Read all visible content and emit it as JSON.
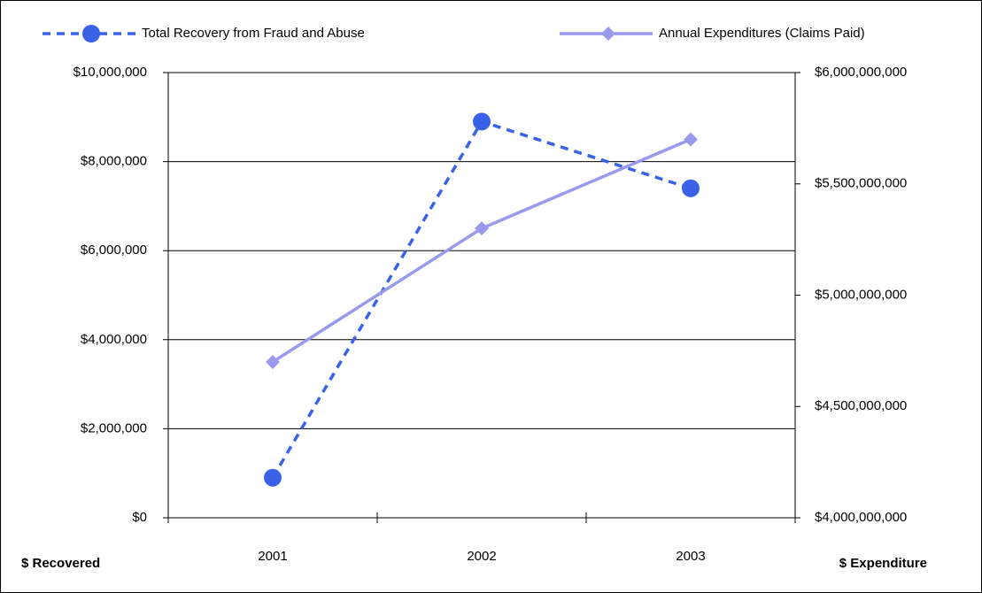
{
  "chart_data": {
    "type": "line",
    "categories": [
      "2001",
      "2002",
      "2003"
    ],
    "series": [
      {
        "name": "Total Recovery from Fraud and Abuse",
        "color": "#3a62e8",
        "dash": true,
        "marker": "circle",
        "values": [
          900000,
          8900000,
          7400000
        ]
      },
      {
        "name": "Annual Expenditures (Claims Paid)",
        "color": "#9999ee",
        "dash": false,
        "marker": "diamond",
        "axis": "y2",
        "values": [
          4700000000,
          5300000000,
          5700000000
        ]
      }
    ],
    "ylim": [
      0,
      10000000
    ],
    "yticks": [
      {
        "value": 0,
        "label": "$0"
      },
      {
        "value": 2000000,
        "label": "$2,000,000"
      },
      {
        "value": 4000000,
        "label": "$4,000,000"
      },
      {
        "value": 6000000,
        "label": "$6,000,000"
      },
      {
        "value": 8000000,
        "label": "$8,000,000"
      },
      {
        "value": 10000000,
        "label": "$10,000,000"
      }
    ],
    "y2lim": [
      4000000000,
      6000000000
    ],
    "y2ticks": [
      {
        "value": 4000000000,
        "label": "$4,000,000,000"
      },
      {
        "value": 4500000000,
        "label": "$4,500,000,000"
      },
      {
        "value": 5000000000,
        "label": "$5,000,000,000"
      },
      {
        "value": 5500000000,
        "label": "$5,500,000,000"
      },
      {
        "value": 6000000000,
        "label": "$6,000,000,000"
      }
    ],
    "ylabel": "$ Recovered",
    "y2label": "$ Expenditure",
    "grid": true,
    "legend": "top"
  }
}
